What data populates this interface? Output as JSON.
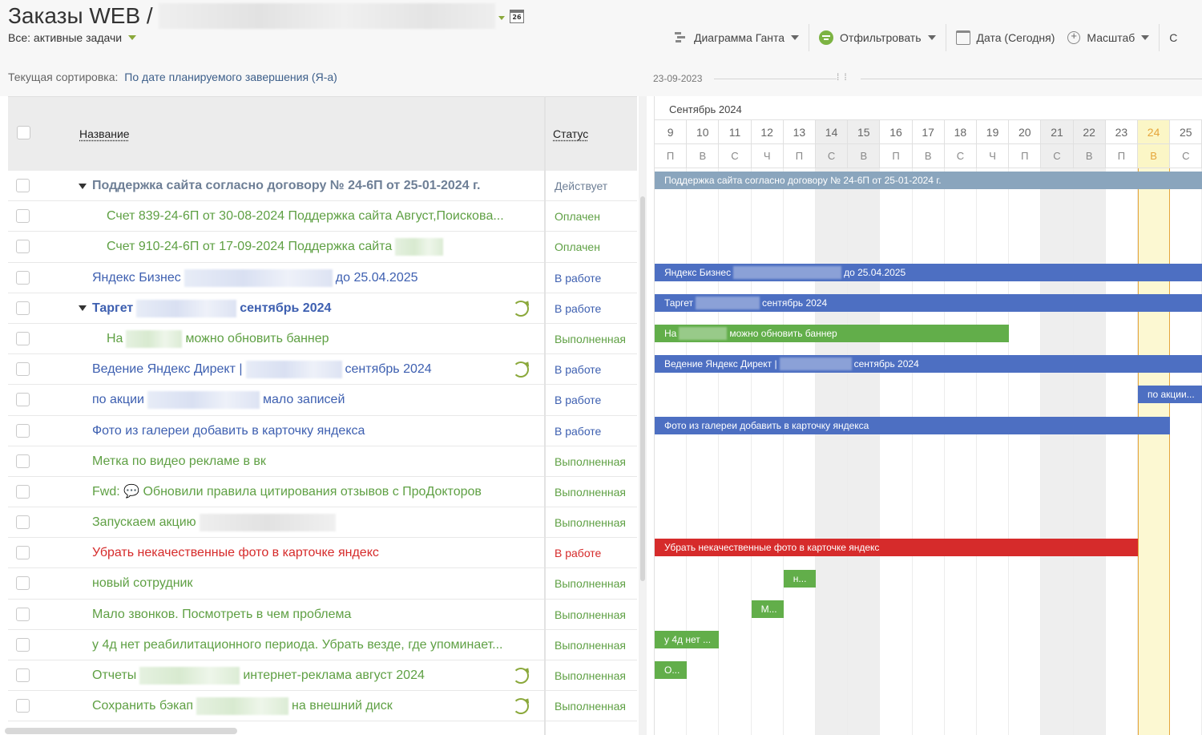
{
  "header": {
    "title": "Заказы WEB /",
    "calendar_badge": "26",
    "scope_filter": "Все: активные задачи",
    "sort_label": "Текущая сортировка:",
    "sort_value": "По дате планируемого завершения (Я-а)"
  },
  "toolbar": {
    "gantt_label": "Диаграмма Ганта",
    "filter_label": "Отфильтровать",
    "date_label": "Дата (Сегодня)",
    "zoom_label": "Масштаб",
    "overflow_label": "С"
  },
  "date_ruler": {
    "start": "23-09-2023"
  },
  "colors": {
    "blue": "#3d5fb0",
    "green": "#5fa044",
    "red": "#d62b2b",
    "gray_text": "#6e7f96",
    "group_bar": "#8aa5bd",
    "accent": "#8aa83a",
    "today": "#e6a53a"
  },
  "table": {
    "col_name": "Название",
    "col_status": "Статус",
    "rows": [
      {
        "name": "Поддержка сайта согласно договору № 24-6П от 25-01-2024 г.",
        "status": "Действует",
        "color": "#6e7f96",
        "bold": true,
        "group": true
      },
      {
        "name": "Счет 839-24-6П от 30-08-2024 Поддержка сайта Август,Поисковa...",
        "status": "Оплачен",
        "color": "#5fa044",
        "indent": true
      },
      {
        "name": "Счет 910-24-6П от 17-09-2024 Поддержка сайта",
        "status": "Оплачен",
        "color": "#5fa044",
        "indent": true
      },
      {
        "name": "Яндекс Бизнес",
        "name_tail": "до 25.04.2025",
        "status": "В работе",
        "color": "#3d5fb0"
      },
      {
        "name": "Таргет",
        "name_tail": "сентябрь 2024",
        "status": "В работе",
        "color": "#3d5fb0",
        "bold": true,
        "group": true,
        "repeat": true
      },
      {
        "name": "На",
        "name_tail": "можно обновить баннер",
        "status": "Выполненная",
        "color": "#5fa044",
        "indent": true
      },
      {
        "name": "Ведение Яндекс Директ |",
        "name_tail": "сентябрь 2024",
        "status": "В работе",
        "color": "#3d5fb0",
        "repeat": true
      },
      {
        "name": "по акции",
        "name_tail": "мало записей",
        "status": "В работе",
        "color": "#3d5fb0"
      },
      {
        "name": "Фото из галереи добавить в карточку яндекса",
        "status": "В работе",
        "color": "#3d5fb0"
      },
      {
        "name": "Метка по видео рекламе в вк",
        "status": "Выполненная",
        "color": "#5fa044"
      },
      {
        "name": "Fwd: 💬 Обновили правила цитирования отзывов с ПроДокторов",
        "status": "Выполненная",
        "color": "#5fa044"
      },
      {
        "name": "Запускаем акцию",
        "status": "Выполненная",
        "color": "#5fa044"
      },
      {
        "name": "Убрать некачественные фото в карточке яндекс",
        "status": "В работе",
        "color": "#d62b2b"
      },
      {
        "name": "новый сотрудник",
        "status": "Выполненная",
        "color": "#5fa044"
      },
      {
        "name": "Мало звонков. Посмотреть в чем проблема",
        "status": "Выполненная",
        "color": "#5fa044"
      },
      {
        "name": "у 4д нет реабилитационного периода. Убрать везде, где упоминает...",
        "status": "Выполненная",
        "color": "#5fa044"
      },
      {
        "name": "Отчеты",
        "name_tail": "интернет-реклама август 2024",
        "status": "Выполненная",
        "color": "#5fa044",
        "repeat": true
      },
      {
        "name": "Сохранить бэкап",
        "name_tail": "на внешний диск",
        "status": "Выполненная",
        "color": "#5fa044",
        "repeat": true
      }
    ]
  },
  "gantt": {
    "month": "Сентябрь 2024",
    "days": [
      "9",
      "10",
      "11",
      "12",
      "13",
      "14",
      "15",
      "16",
      "17",
      "18",
      "19",
      "20",
      "21",
      "22",
      "23",
      "24",
      "25"
    ],
    "weekdays": [
      "П",
      "В",
      "С",
      "Ч",
      "П",
      "С",
      "В",
      "П",
      "В",
      "С",
      "Ч",
      "П",
      "С",
      "В",
      "П",
      "В",
      "С"
    ],
    "weekend_days": [
      "14",
      "15",
      "21",
      "22"
    ],
    "today": "24",
    "bars": [
      {
        "row": 0,
        "start": "9",
        "end": "25+",
        "label": "Поддержка сайта согласно договору № 24-6П от 25-01-2024 г.",
        "color": "gray"
      },
      {
        "row": 3,
        "start": "9",
        "end": "25+",
        "label": "Яндекс Бизнес",
        "label_tail": "до 25.04.2025",
        "color": "blue"
      },
      {
        "row": 4,
        "start": "9",
        "end": "25+",
        "label": "Таргет",
        "label_tail": "сентябрь 2024",
        "color": "blue"
      },
      {
        "row": 5,
        "start": "9",
        "end": "19",
        "label": "На",
        "label_tail": "можно обновить баннер",
        "color": "green"
      },
      {
        "row": 6,
        "start": "9",
        "end": "25+",
        "label": "Ведение Яндекс Директ |",
        "label_tail": "сентябрь 2024",
        "color": "blue"
      },
      {
        "row": 7,
        "start": "24",
        "end": "25+",
        "label": "по акции...",
        "color": "blue"
      },
      {
        "row": 8,
        "start": "9",
        "end": "24",
        "label": "Фото из галереи добавить в карточку яндекса",
        "color": "blue"
      },
      {
        "row": 12,
        "start": "9",
        "end": "23",
        "label": "Убрать некачественные фото в карточке яндекс",
        "color": "red"
      },
      {
        "row": 13,
        "start": "13",
        "end": "13",
        "label": "н...",
        "color": "green"
      },
      {
        "row": 14,
        "start": "12",
        "end": "12",
        "label": "М...",
        "color": "green"
      },
      {
        "row": 15,
        "start": "9",
        "end": "10",
        "label": "у 4д нет ...",
        "color": "green"
      },
      {
        "row": 16,
        "start": "9",
        "end": "9",
        "label": "О...",
        "color": "green"
      }
    ]
  }
}
